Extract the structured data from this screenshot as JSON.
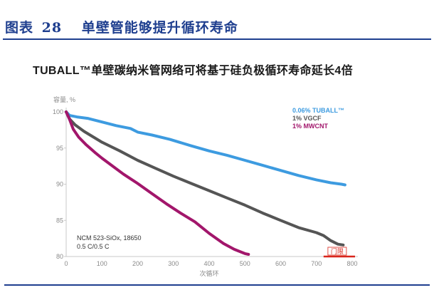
{
  "figure": {
    "label": "图表",
    "number": "28",
    "caption": "单壁管能够提升循环寿命"
  },
  "chart_data": {
    "type": "line",
    "title": "TUBALL™单壁碳纳米管网络可将基于硅负极循环寿命延长4倍",
    "ylabel": "容量, %",
    "xlabel": "次循环",
    "xlim": [
      0,
      800
    ],
    "ylim": [
      80,
      100
    ],
    "x_ticks": [
      0,
      100,
      200,
      300,
      400,
      500,
      600,
      700,
      800
    ],
    "y_ticks": [
      80,
      85,
      90,
      95,
      100
    ],
    "grid": false,
    "legend_position": "top-right",
    "annotation": [
      "NCM 523-SiOx, 18650",
      "0.5 C/0.5 C"
    ],
    "threshold": {
      "label": "门限",
      "y": 80,
      "x_range": [
        720,
        800
      ],
      "color": "#d9261c"
    },
    "series": [
      {
        "name": "0.06% TUBALL™",
        "color": "#3d9be0",
        "points": [
          [
            0,
            100
          ],
          [
            10,
            99.5
          ],
          [
            30,
            99.3
          ],
          [
            60,
            99.1
          ],
          [
            100,
            98.6
          ],
          [
            140,
            98.1
          ],
          [
            180,
            97.7
          ],
          [
            200,
            97.2
          ],
          [
            240,
            96.8
          ],
          [
            290,
            96.2
          ],
          [
            350,
            95.3
          ],
          [
            400,
            94.6
          ],
          [
            450,
            94.0
          ],
          [
            500,
            93.3
          ],
          [
            550,
            92.6
          ],
          [
            600,
            91.9
          ],
          [
            650,
            91.2
          ],
          [
            700,
            90.6
          ],
          [
            740,
            90.2
          ],
          [
            770,
            90.0
          ],
          [
            780,
            89.9
          ]
        ]
      },
      {
        "name": "1% VGCF",
        "color": "#555555",
        "points": [
          [
            0,
            100
          ],
          [
            10,
            99.0
          ],
          [
            25,
            98.2
          ],
          [
            50,
            97.3
          ],
          [
            100,
            95.8
          ],
          [
            150,
            94.6
          ],
          [
            200,
            93.3
          ],
          [
            250,
            92.2
          ],
          [
            300,
            91.1
          ],
          [
            350,
            90.1
          ],
          [
            400,
            89.1
          ],
          [
            450,
            88.1
          ],
          [
            500,
            87.1
          ],
          [
            550,
            86.0
          ],
          [
            600,
            85.0
          ],
          [
            650,
            84.0
          ],
          [
            700,
            83.3
          ],
          [
            720,
            82.9
          ],
          [
            740,
            82.2
          ],
          [
            760,
            81.7
          ],
          [
            775,
            81.6
          ]
        ]
      },
      {
        "name": "1% MWCNT",
        "color": "#a2166b",
        "points": [
          [
            0,
            100
          ],
          [
            10,
            98.9
          ],
          [
            20,
            97.6
          ],
          [
            35,
            96.5
          ],
          [
            55,
            95.5
          ],
          [
            80,
            94.4
          ],
          [
            100,
            93.6
          ],
          [
            130,
            92.5
          ],
          [
            160,
            91.4
          ],
          [
            200,
            90.1
          ],
          [
            240,
            88.7
          ],
          [
            280,
            87.3
          ],
          [
            320,
            86.0
          ],
          [
            360,
            84.8
          ],
          [
            400,
            83.2
          ],
          [
            440,
            81.8
          ],
          [
            470,
            81.0
          ],
          [
            500,
            80.4
          ],
          [
            510,
            80.3
          ]
        ]
      }
    ]
  }
}
